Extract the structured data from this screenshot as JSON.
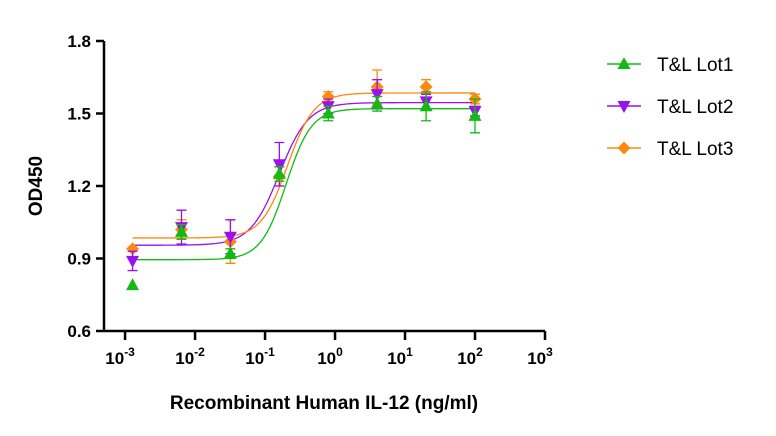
{
  "chart_data": {
    "type": "scatter",
    "title": "",
    "xlabel": "Recombinant Human IL-12 (ng/ml)",
    "ylabel": "OD450",
    "xscale": "log",
    "xlim": [
      0.0005,
      1000
    ],
    "ylim": [
      0.6,
      1.8
    ],
    "x_ticks": [
      {
        "value": 0.001,
        "base": "10",
        "exp": "-3"
      },
      {
        "value": 0.01,
        "base": "10",
        "exp": "-2"
      },
      {
        "value": 0.1,
        "base": "10",
        "exp": "-1"
      },
      {
        "value": 1,
        "base": "10",
        "exp": "0"
      },
      {
        "value": 10,
        "base": "10",
        "exp": "1"
      },
      {
        "value": 100,
        "base": "10",
        "exp": "2"
      },
      {
        "value": 1000,
        "base": "10",
        "exp": "3"
      }
    ],
    "y_ticks": [
      {
        "value": 0.6,
        "label": "0.6"
      },
      {
        "value": 0.9,
        "label": "0.9"
      },
      {
        "value": 1.2,
        "label": "1.2"
      },
      {
        "value": 1.5,
        "label": "1.5"
      },
      {
        "value": 1.8,
        "label": "1.8"
      }
    ],
    "grid": false,
    "legend_position": "right",
    "series": [
      {
        "name": "T&L Lot1",
        "color": "#11bb11",
        "marker": "triangle-up",
        "x": [
          0.00128,
          0.0064,
          0.032,
          0.16,
          0.8,
          4,
          20,
          100
        ],
        "y": [
          0.79,
          1.01,
          0.92,
          1.25,
          1.5,
          1.54,
          1.53,
          1.49
        ],
        "err": [
          0,
          0.03,
          0.02,
          0.03,
          0.03,
          0.03,
          0.06,
          0.07
        ],
        "fit": {
          "bottom": 0.895,
          "top": 1.52,
          "ec50": 0.2,
          "hill": 2.4
        }
      },
      {
        "name": "T&L Lot2",
        "color": "#9911ee",
        "marker": "triangle-down",
        "x": [
          0.00128,
          0.0064,
          0.032,
          0.16,
          0.8,
          4,
          20,
          100
        ],
        "y": [
          0.89,
          1.03,
          0.99,
          1.29,
          1.53,
          1.58,
          1.55,
          1.51
        ],
        "err": [
          0.04,
          0.07,
          0.07,
          0.09,
          0.03,
          0.06,
          0.03,
          0.02
        ],
        "fit": {
          "bottom": 0.955,
          "top": 1.545,
          "ec50": 0.16,
          "hill": 2.1
        }
      },
      {
        "name": "T&L Lot3",
        "color": "#ff8811",
        "marker": "diamond",
        "x": [
          0.00128,
          0.0064,
          0.032,
          0.16,
          0.8,
          4,
          20,
          100
        ],
        "y": [
          0.94,
          1.02,
          0.97,
          1.24,
          1.57,
          1.61,
          1.61,
          1.56
        ],
        "err": [
          0,
          0.04,
          0.09,
          0.04,
          0.02,
          0.07,
          0.03,
          0.02
        ],
        "fit": {
          "bottom": 0.985,
          "top": 1.585,
          "ec50": 0.21,
          "hill": 2.3
        }
      }
    ]
  }
}
